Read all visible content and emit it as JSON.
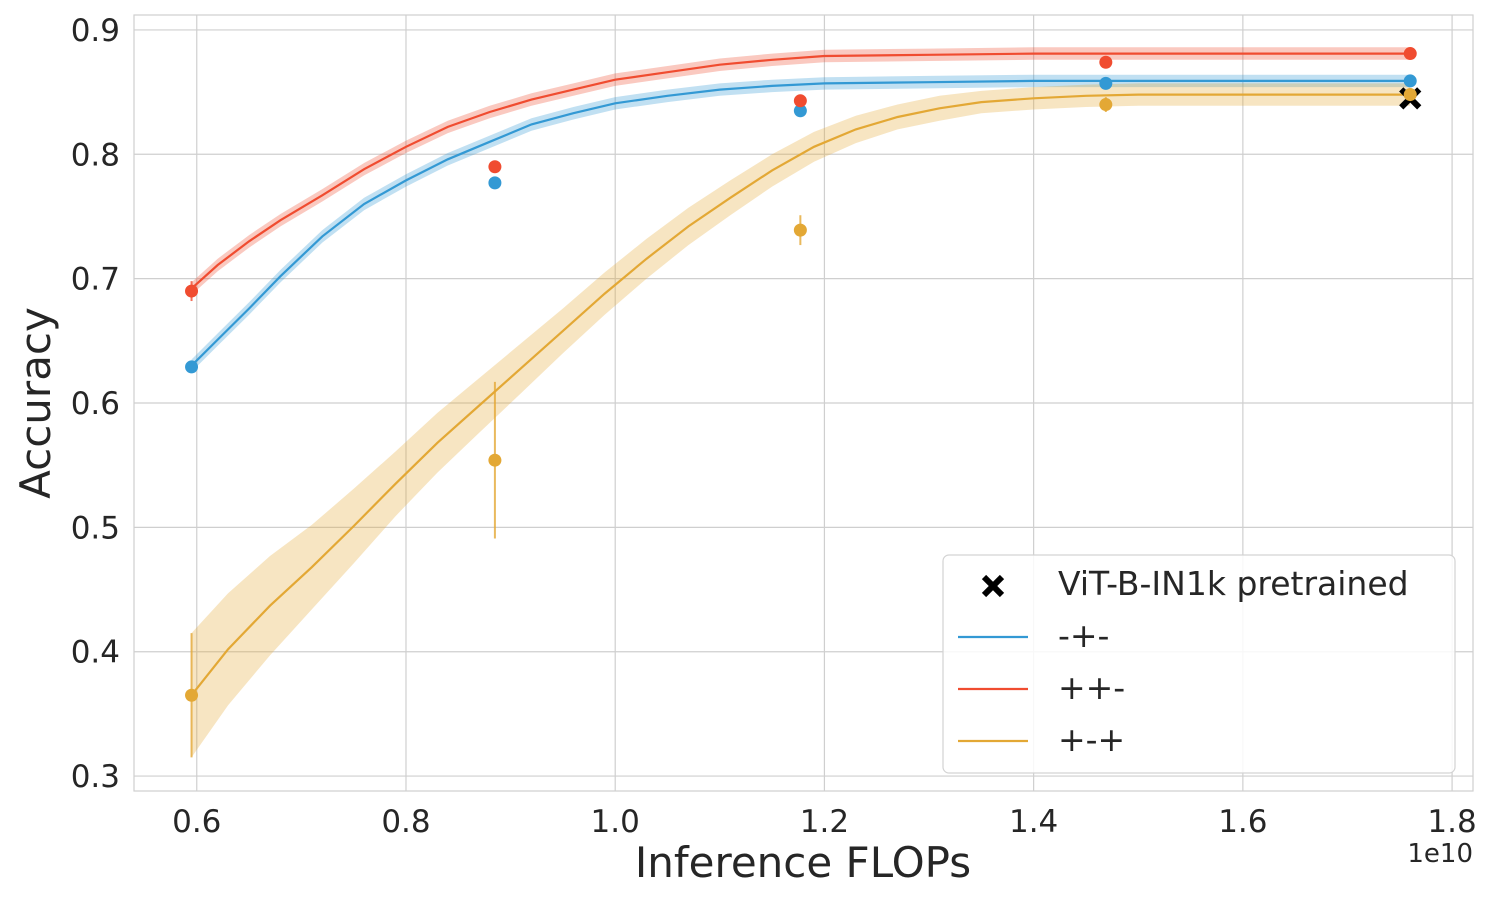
{
  "chart_data": {
    "type": "line",
    "xlabel": "Inference FLOPs",
    "ylabel": "Accuracy",
    "x_offset_label": "1e10",
    "xlim": [
      0.54,
      1.82
    ],
    "ylim": [
      0.288,
      0.912
    ],
    "xticks": [
      0.6,
      0.8,
      1.0,
      1.2,
      1.4,
      1.6,
      1.8
    ],
    "xtick_labels": [
      "0.6",
      "0.8",
      "1.0",
      "1.2",
      "1.4",
      "1.6",
      "1.8"
    ],
    "yticks": [
      0.3,
      0.4,
      0.5,
      0.6,
      0.7,
      0.8,
      0.9
    ],
    "ytick_labels": [
      "0.3",
      "0.4",
      "0.5",
      "0.6",
      "0.7",
      "0.8",
      "0.9"
    ],
    "grid": true,
    "legend_position": "bottom-right",
    "reference": {
      "name": "ViT-B-IN1k pretrained",
      "x": 1.76,
      "y": 0.845,
      "color": "#000000",
      "marker": "x"
    },
    "series": [
      {
        "name": "-+-",
        "color": "#3399d4",
        "curve_x": [
          0.595,
          0.62,
          0.65,
          0.68,
          0.72,
          0.76,
          0.8,
          0.84,
          0.88,
          0.92,
          0.96,
          1.0,
          1.05,
          1.1,
          1.15,
          1.2,
          1.3,
          1.4,
          1.5,
          1.6,
          1.7,
          1.76
        ],
        "curve_y": [
          0.63,
          0.651,
          0.676,
          0.702,
          0.734,
          0.76,
          0.779,
          0.796,
          0.81,
          0.824,
          0.833,
          0.841,
          0.847,
          0.852,
          0.855,
          0.857,
          0.858,
          0.859,
          0.859,
          0.859,
          0.859,
          0.859
        ],
        "band": 0.005,
        "points_x": [
          0.595,
          0.885,
          1.177,
          1.469,
          1.76
        ],
        "points_y": [
          0.629,
          0.777,
          0.835,
          0.857,
          0.859
        ],
        "points_err": [
          0.002,
          0.002,
          0.002,
          0.002,
          0.002
        ]
      },
      {
        "name": "++-",
        "color": "#f04c30",
        "curve_x": [
          0.595,
          0.62,
          0.65,
          0.68,
          0.72,
          0.76,
          0.8,
          0.84,
          0.88,
          0.92,
          0.96,
          1.0,
          1.05,
          1.1,
          1.15,
          1.2,
          1.3,
          1.4,
          1.5,
          1.6,
          1.7,
          1.76
        ],
        "curve_y": [
          0.692,
          0.711,
          0.73,
          0.747,
          0.767,
          0.788,
          0.806,
          0.822,
          0.834,
          0.844,
          0.852,
          0.86,
          0.866,
          0.872,
          0.876,
          0.879,
          0.88,
          0.881,
          0.881,
          0.881,
          0.881,
          0.881
        ],
        "band": 0.005,
        "points_x": [
          0.595,
          0.885,
          1.177,
          1.469,
          1.76
        ],
        "points_y": [
          0.69,
          0.79,
          0.843,
          0.874,
          0.881
        ],
        "points_err": [
          0.008,
          0.002,
          0.002,
          0.002,
          0.002
        ]
      },
      {
        "name": "+-+",
        "color": "#e3a835",
        "curve_x": [
          0.595,
          0.63,
          0.67,
          0.71,
          0.75,
          0.79,
          0.83,
          0.87,
          0.91,
          0.95,
          0.99,
          1.03,
          1.07,
          1.11,
          1.15,
          1.19,
          1.23,
          1.27,
          1.31,
          1.35,
          1.4,
          1.45,
          1.5,
          1.6,
          1.7,
          1.76
        ],
        "curve_y": [
          0.365,
          0.402,
          0.437,
          0.468,
          0.501,
          0.535,
          0.568,
          0.598,
          0.628,
          0.658,
          0.688,
          0.716,
          0.742,
          0.765,
          0.787,
          0.806,
          0.82,
          0.83,
          0.837,
          0.842,
          0.845,
          0.847,
          0.848,
          0.848,
          0.848,
          0.848
        ],
        "band_widths": [
          0.05,
          0.045,
          0.04,
          0.034,
          0.03,
          0.026,
          0.024,
          0.022,
          0.02,
          0.018,
          0.017,
          0.016,
          0.015,
          0.014,
          0.013,
          0.012,
          0.011,
          0.01,
          0.01,
          0.009,
          0.009,
          0.009,
          0.009,
          0.009,
          0.009,
          0.009
        ],
        "points_x": [
          0.595,
          0.885,
          1.177,
          1.469,
          1.76
        ],
        "points_y": [
          0.365,
          0.554,
          0.739,
          0.84,
          0.848
        ],
        "points_err": [
          0.05,
          0.063,
          0.012,
          0.006,
          0.003
        ]
      }
    ]
  }
}
